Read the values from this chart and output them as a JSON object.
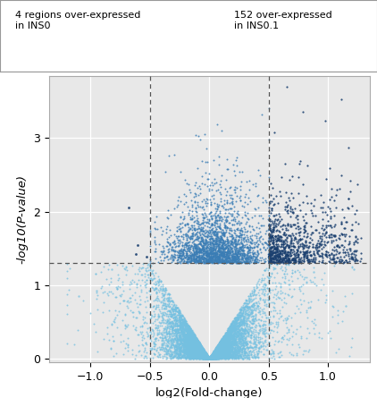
{
  "xlabel": "log2(Fold-change)",
  "ylabel_text": "-log10(P-value)",
  "xlim": [
    -1.35,
    1.35
  ],
  "ylim": [
    -0.05,
    3.85
  ],
  "xticks": [
    -1.0,
    -0.5,
    0.0,
    0.5,
    1.0
  ],
  "yticks": [
    0,
    1,
    2,
    3
  ],
  "vline1": -0.5,
  "vline2": 0.5,
  "hline": 1.3,
  "light_blue": "#74C0E0",
  "mid_blue": "#3A7DB5",
  "dark_blue": "#1A3F6F",
  "bg_color": "#E8E8E8",
  "legend_left": "4 regions over-expressed\nin INS0",
  "legend_right": "152 over-expressed\nin INS0.1",
  "seed": 42,
  "p_threshold": 1.3,
  "fc_threshold": 0.5
}
